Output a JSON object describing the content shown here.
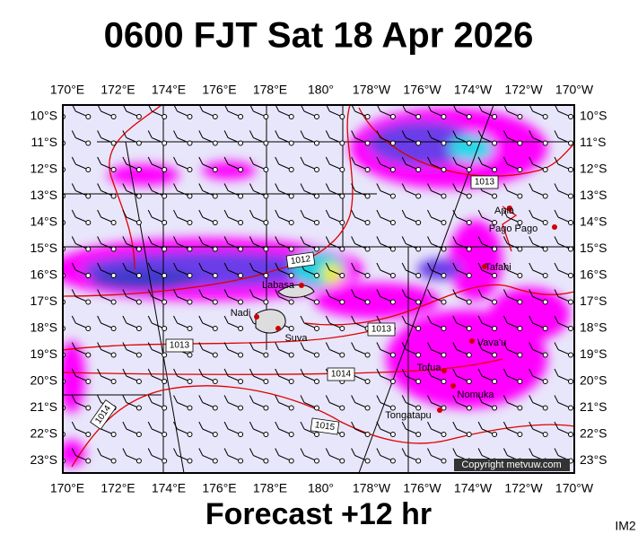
{
  "title": "0600 FJT Sat 18 Apr 2026",
  "footer": "Forecast +12 hr",
  "corner_label": "IM2",
  "copyright": "Copyright metvuw.com",
  "longitude_labels": [
    "170°E",
    "172°E",
    "174°E",
    "176°E",
    "178°E",
    "180°",
    "178°W",
    "176°W",
    "174°W",
    "172°W",
    "170°W"
  ],
  "latitude_labels": [
    "10°S",
    "11°S",
    "12°S",
    "13°S",
    "14°S",
    "15°S",
    "16°S",
    "17°S",
    "18°S",
    "19°S",
    "20°S",
    "21°S",
    "22°S",
    "23°S"
  ],
  "places": [
    {
      "label": "Apia"
    },
    {
      "label": "Pago Pago"
    },
    {
      "label": "Tafahi"
    },
    {
      "label": "Labasa"
    },
    {
      "label": "Nadi"
    },
    {
      "label": "Suva"
    },
    {
      "label": "Vava'u"
    },
    {
      "label": "Tofua"
    },
    {
      "label": "Nomuka"
    },
    {
      "label": "Tongatapu"
    }
  ],
  "isobar_labels": [
    "1013",
    "1012",
    "1013",
    "1013",
    "1014",
    "1014",
    "1015"
  ]
}
